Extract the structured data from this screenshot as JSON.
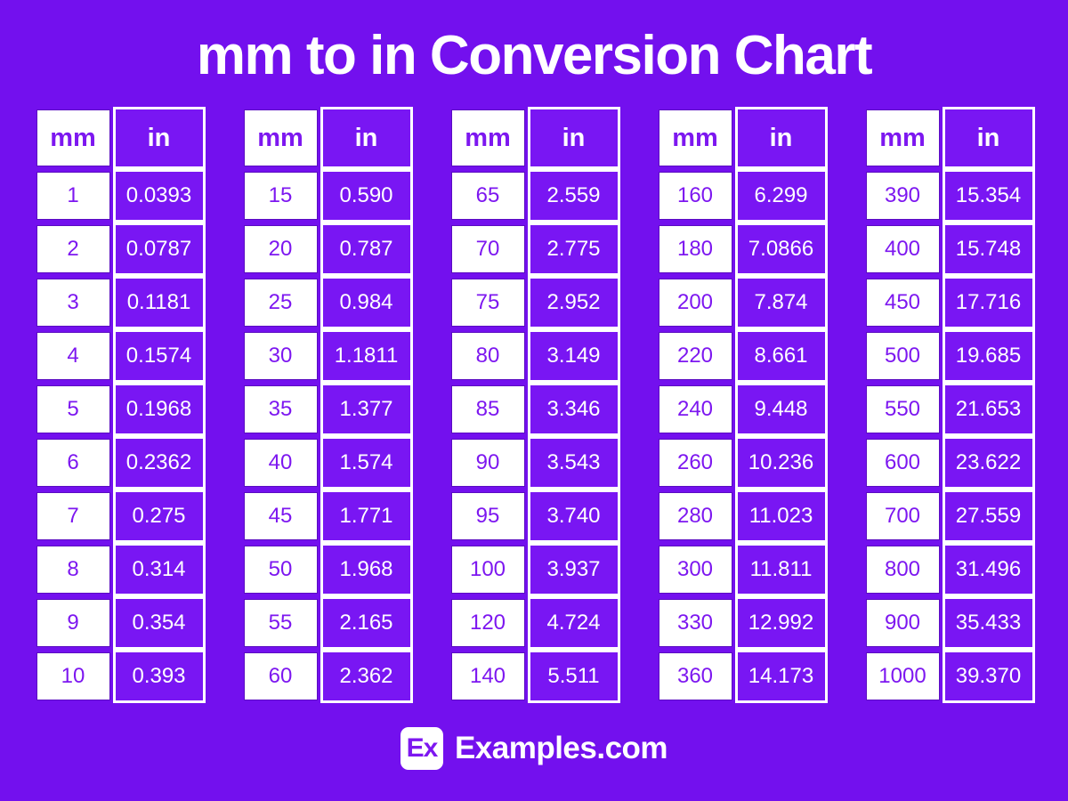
{
  "title": "mm to in Conversion Chart",
  "colors": {
    "background": "#7310EE",
    "cell_purple": "#7916F3",
    "hairline_purple": "#5B0CC2",
    "text_purple": "#7D17F0",
    "white": "#FFFFFF"
  },
  "footer": {
    "logo_text": "Ex",
    "site_name": "Examples.com"
  },
  "chart_data": {
    "type": "table",
    "title": "mm to in Conversion Chart",
    "columns": [
      "mm",
      "in"
    ],
    "tables": [
      {
        "rows": [
          [
            "1",
            "0.0393"
          ],
          [
            "2",
            "0.0787"
          ],
          [
            "3",
            "0.1181"
          ],
          [
            "4",
            "0.1574"
          ],
          [
            "5",
            "0.1968"
          ],
          [
            "6",
            "0.2362"
          ],
          [
            "7",
            "0.275"
          ],
          [
            "8",
            "0.314"
          ],
          [
            "9",
            "0.354"
          ],
          [
            "10",
            "0.393"
          ]
        ]
      },
      {
        "rows": [
          [
            "15",
            "0.590"
          ],
          [
            "20",
            "0.787"
          ],
          [
            "25",
            "0.984"
          ],
          [
            "30",
            "1.1811"
          ],
          [
            "35",
            "1.377"
          ],
          [
            "40",
            "1.574"
          ],
          [
            "45",
            "1.771"
          ],
          [
            "50",
            "1.968"
          ],
          [
            "55",
            "2.165"
          ],
          [
            "60",
            "2.362"
          ]
        ]
      },
      {
        "rows": [
          [
            "65",
            "2.559"
          ],
          [
            "70",
            "2.775"
          ],
          [
            "75",
            "2.952"
          ],
          [
            "80",
            "3.149"
          ],
          [
            "85",
            "3.346"
          ],
          [
            "90",
            "3.543"
          ],
          [
            "95",
            "3.740"
          ],
          [
            "100",
            "3.937"
          ],
          [
            "120",
            "4.724"
          ],
          [
            "140",
            "5.511"
          ]
        ]
      },
      {
        "rows": [
          [
            "160",
            "6.299"
          ],
          [
            "180",
            "7.0866"
          ],
          [
            "200",
            "7.874"
          ],
          [
            "220",
            "8.661"
          ],
          [
            "240",
            "9.448"
          ],
          [
            "260",
            "10.236"
          ],
          [
            "280",
            "11.023"
          ],
          [
            "300",
            "11.811"
          ],
          [
            "330",
            "12.992"
          ],
          [
            "360",
            "14.173"
          ]
        ]
      },
      {
        "rows": [
          [
            "390",
            "15.354"
          ],
          [
            "400",
            "15.748"
          ],
          [
            "450",
            "17.716"
          ],
          [
            "500",
            "19.685"
          ],
          [
            "550",
            "21.653"
          ],
          [
            "600",
            "23.622"
          ],
          [
            "700",
            "27.559"
          ],
          [
            "800",
            "31.496"
          ],
          [
            "900",
            "35.433"
          ],
          [
            "1000",
            "39.370"
          ]
        ]
      }
    ]
  }
}
